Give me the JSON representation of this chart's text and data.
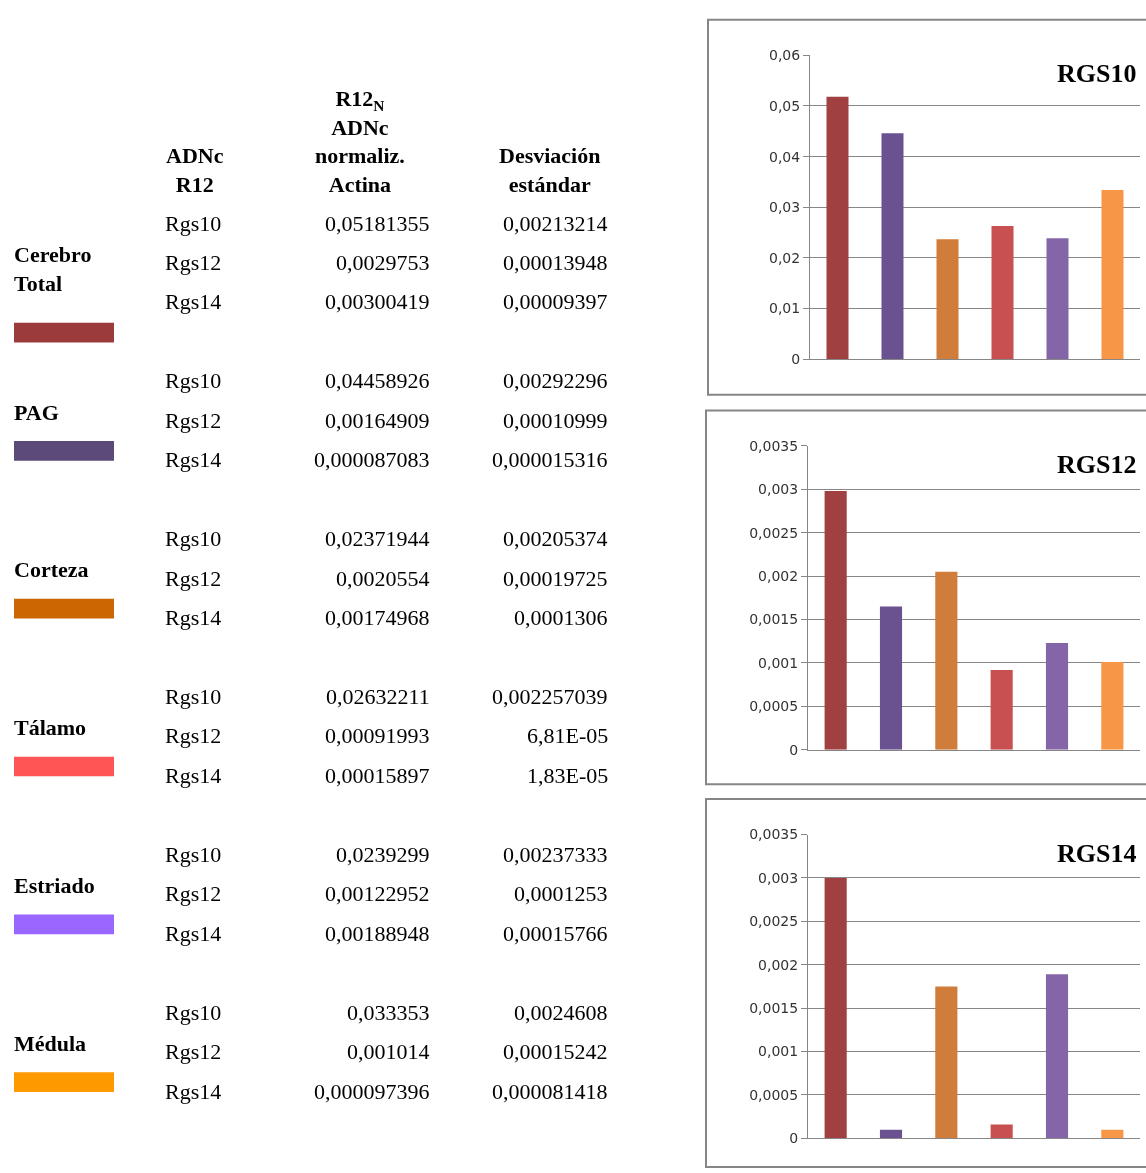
{
  "chart_data": [
    {
      "type": "other",
      "categories": [
        "Cerebro\nTotal",
        "PAG",
        "Corteza",
        "Tálamo",
        "Estriado",
        "Médula"
      ],
      "colors": [
        "#9b3b3b",
        "#5b4a7a",
        "#cc6600",
        "#ff5555",
        "#9966ff",
        "#ff9900"
      ],
      "annotations": [
        "ADNc\nR12",
        "R12$_{N}$\nADNc\nnormaliz.\nActina",
        "Desviación\nestándar",
        "Rgs10",
        "0,05181355",
        "0,00213214",
        "Rgs12",
        "0,0029753",
        "0,00013948",
        "Rgs14",
        "0,00300419",
        "0,00009397",
        "Rgs10",
        "0,04458926",
        "0,00292296",
        "Rgs12",
        "0,00164909",
        "0,00010999",
        "Rgs14",
        "0,000087083",
        "0,000015316",
        "Rgs10",
        "0,02371944",
        "0,00205374",
        "Rgs12",
        "0,0020554",
        "0,00019725",
        "Rgs14",
        "0,00174968",
        "0,0001306",
        "Rgs10",
        "0,02632211",
        "0,002257039",
        "Rgs12",
        "0,00091993",
        "6,81E-05",
        "Rgs14",
        "0,00015897",
        "1,83E-05",
        "Rgs10",
        "0,0239299",
        "0,00237333",
        "Rgs12",
        "0,00122952",
        "0,0001253",
        "Rgs14",
        "0,00188948",
        "0,00015766",
        "Rgs10",
        "0,033353",
        "0,0024608",
        "Rgs12",
        "0,001014",
        "0,00015242",
        "Rgs14",
        "0,000097396",
        "0,000081418"
      ]
    },
    {
      "type": "bar",
      "title": "RGS10",
      "categories": [
        null,
        null,
        null,
        null,
        null,
        null
      ],
      "colors": [
        "#a04040",
        "#6a5190",
        "#d07c3a",
        "#c85050",
        "#8466a8",
        "#f79646"
      ],
      "values": [
        0.0518,
        0.0446,
        0.0237,
        0.0263,
        0.0239,
        0.0334
      ],
      "ylim": [
        0,
        0.06
      ],
      "yticks": [
        0,
        {
          "value": 0.01,
          "label": "0,01"
        },
        {
          "value": 0.02,
          "label": "0,02"
        },
        {
          "value": 0.03,
          "label": "0,03"
        },
        {
          "value": 0.04,
          "label": "0,04"
        },
        {
          "value": 0.05,
          "label": "0,05"
        },
        {
          "value": 0.06,
          "label": "0,06"
        }
      ],
      "grid": "y"
    },
    {
      "type": "bar",
      "title": "RGS12",
      "categories": [
        null,
        null,
        null,
        null,
        null,
        null
      ],
      "colors": [
        "#a04040",
        "#6a5190",
        "#d07c3a",
        "#c85050",
        "#8466a8",
        "#f79646"
      ],
      "values": [
        0.00298,
        0.00165,
        0.00205,
        0.00092,
        0.00123,
        0.00101
      ],
      "ylim": [
        0,
        0.0035
      ],
      "yticks": [
        0,
        {
          "value": 0.0005,
          "label": "0,0005"
        },
        {
          "value": 0.001,
          "label": "0,001"
        },
        {
          "value": 0.0015,
          "label": "0,0015"
        },
        {
          "value": 0.002,
          "label": "0,002"
        },
        {
          "value": 0.0025,
          "label": "0,0025"
        },
        {
          "value": 0.003,
          "label": "0,003"
        },
        {
          "value": 0.0035,
          "label": "0,0035"
        }
      ],
      "grid": "y"
    },
    {
      "type": "bar",
      "title": "RGS14",
      "categories": [
        null,
        null,
        null,
        null,
        null,
        null
      ],
      "colors": [
        "#a04040",
        "#6a5190",
        "#d07c3a",
        "#c85050",
        "#8466a8",
        "#f79646"
      ],
      "values": [
        0.003,
        0.0001,
        0.00175,
        0.00016,
        0.00189,
        0.0001
      ],
      "ylim": [
        0,
        0.0035
      ],
      "yticks": [
        0,
        {
          "value": 0.0005,
          "label": "0,0005"
        },
        {
          "value": 0.001,
          "label": "0,001"
        },
        {
          "value": 0.0015,
          "label": "0,0015"
        },
        {
          "value": 0.002,
          "label": "0,002"
        },
        {
          "value": 0.0025,
          "label": "0,0025"
        },
        {
          "value": 0.003,
          "label": "0,003"
        },
        {
          "value": 0.0035,
          "label": "0,0035"
        }
      ],
      "grid": "y"
    }
  ]
}
